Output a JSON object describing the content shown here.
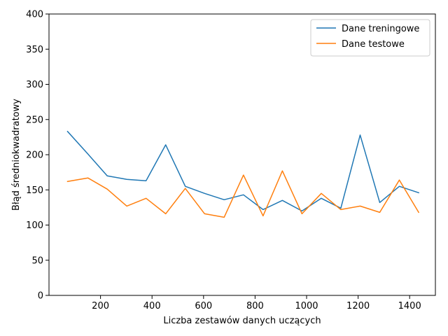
{
  "chart_data": {
    "type": "line",
    "title": "",
    "xlabel": "Liczba zestawów danych uczących",
    "ylabel": "Błąd średniokwadratowy",
    "xlim": [
      0,
      1500
    ],
    "ylim": [
      0,
      400
    ],
    "xticks": [
      200,
      400,
      600,
      800,
      1000,
      1200,
      1400
    ],
    "yticks": [
      0,
      50,
      100,
      150,
      200,
      250,
      300,
      350,
      400
    ],
    "grid": false,
    "legend_position": "top-right",
    "x": [
      72,
      151,
      226,
      302,
      377,
      453,
      529,
      604,
      680,
      755,
      831,
      906,
      982,
      1057,
      1133,
      1208,
      1284,
      1360,
      1435
    ],
    "series": [
      {
        "name": "Dane treningowe",
        "color": "#1f77b4",
        "values": [
          233,
          201,
          170,
          165,
          163,
          214,
          155,
          145,
          136,
          143,
          122,
          135,
          120,
          138,
          124,
          228,
          132,
          155,
          146
        ]
      },
      {
        "name": "Dane testowe",
        "color": "#ff7f0e",
        "values": [
          162,
          167,
          151,
          127,
          138,
          116,
          152,
          116,
          111,
          171,
          113,
          177,
          116,
          145,
          122,
          127,
          118,
          164,
          118
        ]
      }
    ]
  }
}
